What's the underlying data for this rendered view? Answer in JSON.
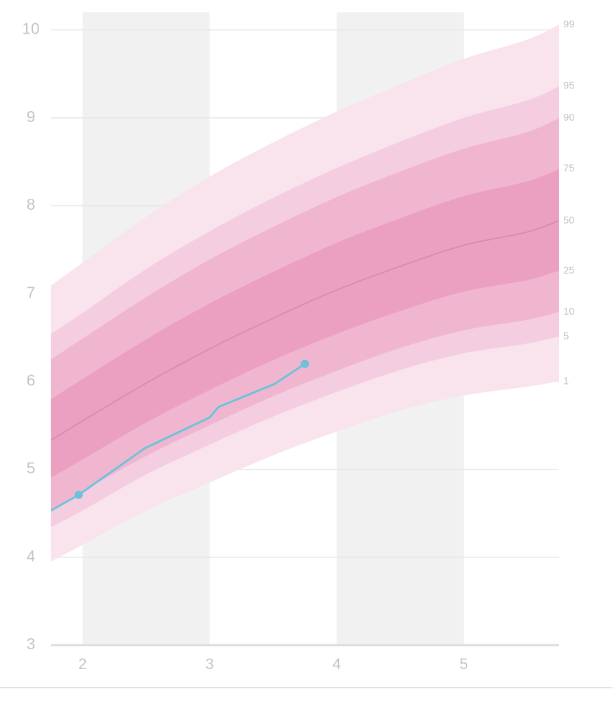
{
  "chart_data": {
    "type": "percentile_band",
    "x": [
      1.75,
      2,
      2.5,
      3,
      3.5,
      4,
      4.5,
      5,
      5.5,
      5.75
    ],
    "series": [
      {
        "name": "1",
        "values": [
          3.95,
          4.14,
          4.53,
          4.85,
          5.16,
          5.43,
          5.67,
          5.84,
          5.94,
          6.0
        ]
      },
      {
        "name": "5",
        "values": [
          4.34,
          4.53,
          4.94,
          5.28,
          5.6,
          5.88,
          6.13,
          6.32,
          6.43,
          6.51
        ]
      },
      {
        "name": "10",
        "values": [
          4.54,
          4.75,
          5.15,
          5.5,
          5.83,
          6.12,
          6.38,
          6.58,
          6.7,
          6.79
        ]
      },
      {
        "name": "25",
        "values": [
          4.9,
          5.11,
          5.53,
          5.9,
          6.24,
          6.54,
          6.8,
          7.02,
          7.15,
          7.26
        ]
      },
      {
        "name": "50",
        "values": [
          5.33,
          5.55,
          5.98,
          6.37,
          6.72,
          7.04,
          7.31,
          7.55,
          7.7,
          7.83
        ]
      },
      {
        "name": "75",
        "values": [
          5.8,
          6.03,
          6.48,
          6.89,
          7.25,
          7.58,
          7.86,
          8.11,
          8.28,
          8.42
        ]
      },
      {
        "name": "90",
        "values": [
          6.25,
          6.49,
          6.96,
          7.39,
          7.76,
          8.1,
          8.39,
          8.65,
          8.84,
          9.0
        ]
      },
      {
        "name": "95",
        "values": [
          6.54,
          6.78,
          7.28,
          7.71,
          8.09,
          8.43,
          8.73,
          9.0,
          9.2,
          9.36
        ]
      },
      {
        "name": "99",
        "values": [
          7.09,
          7.35,
          7.87,
          8.33,
          8.72,
          9.07,
          9.38,
          9.67,
          9.89,
          10.06
        ]
      }
    ],
    "band_colors": [
      "#f9e3ed",
      "#f5cde0",
      "#f0b6d0",
      "#eca0c1",
      "#eca0c1",
      "#f0b6d0",
      "#f5cde0",
      "#f9e3ed"
    ],
    "median_color": "#d48fae",
    "measurements": {
      "color": "#6cc3d8",
      "x": [
        1.75,
        1.97,
        2.49,
        3.0,
        3.07,
        3.51,
        3.75
      ],
      "values": [
        4.53,
        4.71,
        5.24,
        5.59,
        5.71,
        5.97,
        6.2
      ]
    },
    "measurement_points": {
      "x": [
        1.97,
        3.75
      ],
      "values": [
        4.71,
        6.2
      ]
    },
    "xlim": [
      1.75,
      5.75
    ],
    "xticks": [
      2,
      3,
      4,
      5
    ],
    "ylim": [
      3,
      10.2
    ],
    "yticks": [
      3,
      4,
      5,
      6,
      7,
      8,
      9,
      10
    ],
    "grid": true,
    "column_shading": "#f1f1f1"
  }
}
